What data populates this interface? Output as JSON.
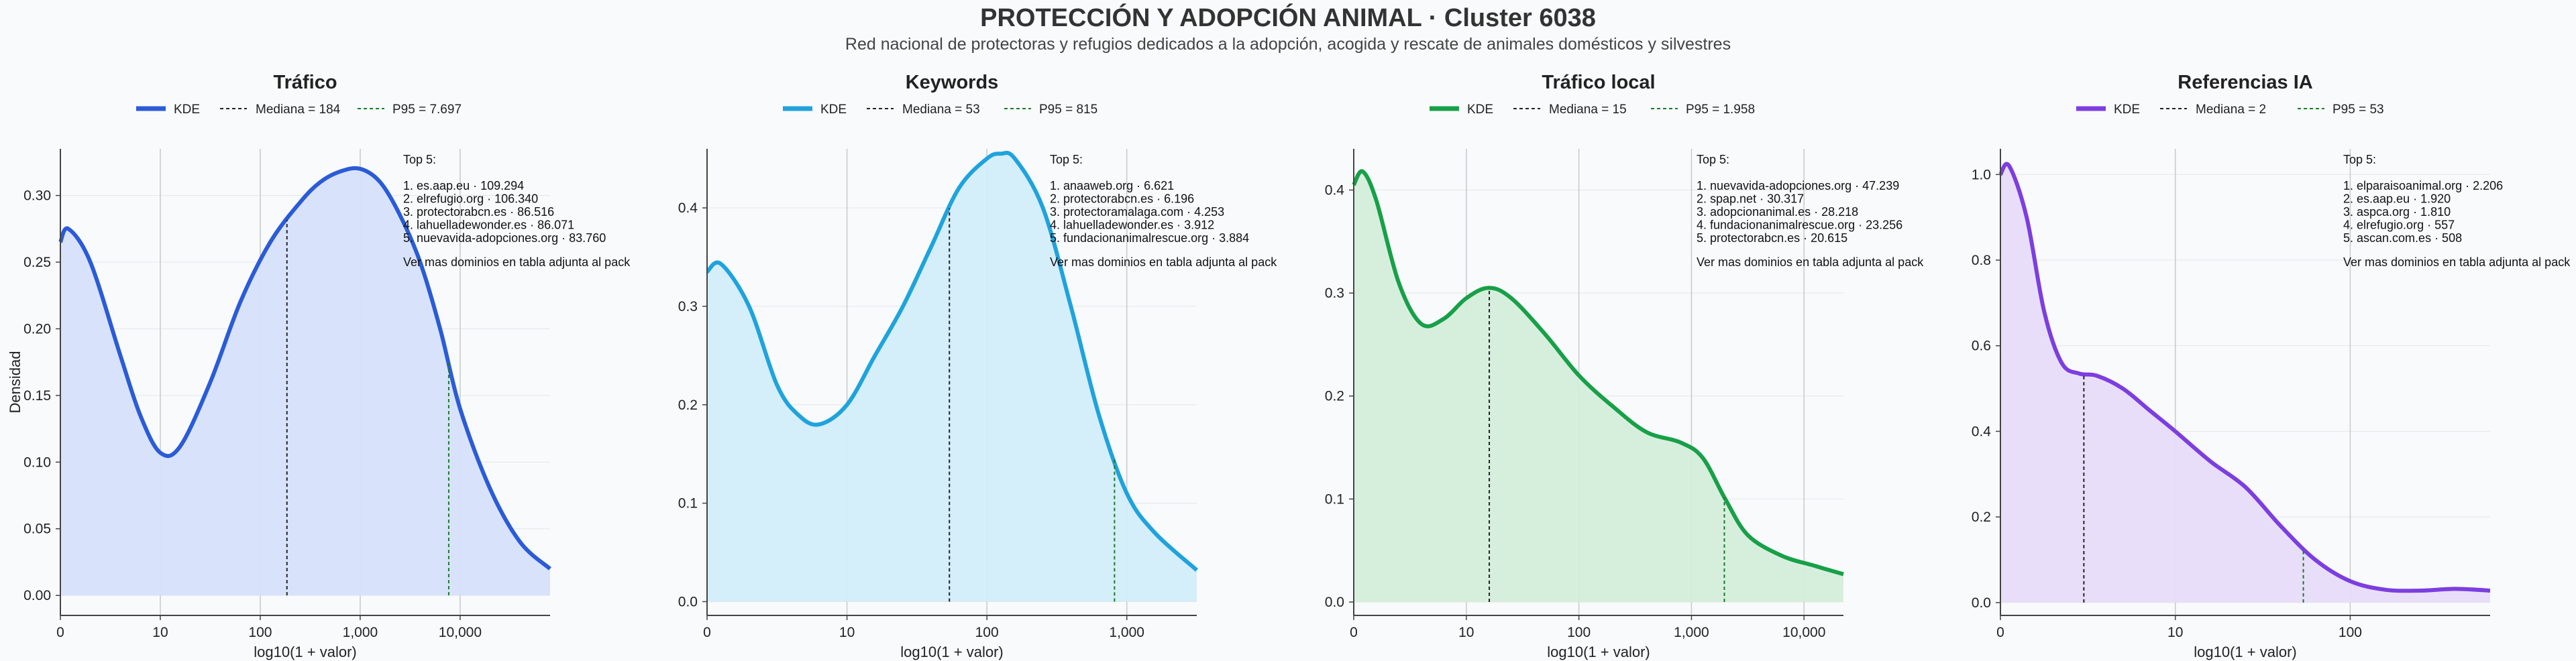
{
  "title": "PROTECCIÓN Y ADOPCIÓN ANIMAL · Cluster 6038",
  "subtitle": "Red nacional de protectoras y refugios dedicados a la adopción, acogida y rescate de animales domésticos y silvestres",
  "chart_data": [
    {
      "type": "area",
      "title": "Tráfico",
      "xlabel": "log10(1 + valor)",
      "ylabel": "Densidad",
      "color": "#2b5bd7",
      "fill": "#d6e2fb",
      "xlim": [
        0,
        4.9
      ],
      "ylim": [
        -0.015,
        0.335
      ],
      "xticks": [
        {
          "v": 0,
          "label": "0"
        },
        {
          "v": 1,
          "label": "10"
        },
        {
          "v": 2,
          "label": "100"
        },
        {
          "v": 3,
          "label": "1,000"
        },
        {
          "v": 4,
          "label": "10,000"
        }
      ],
      "yticks": [
        {
          "v": 0,
          "label": "0.00"
        },
        {
          "v": 0.05,
          "label": "0.05"
        },
        {
          "v": 0.1,
          "label": "0.10"
        },
        {
          "v": 0.15,
          "label": "0.15"
        },
        {
          "v": 0.2,
          "label": "0.20"
        },
        {
          "v": 0.25,
          "label": "0.25"
        },
        {
          "v": 0.3,
          "label": "0.30"
        }
      ],
      "legend": {
        "kde": "KDE",
        "median": "Mediana = 184",
        "p95": "P95 = 7.697"
      },
      "median_x": 2.267,
      "p95_x": 3.886,
      "kde": {
        "x": [
          0,
          0.08,
          0.3,
          0.6,
          0.8,
          1.0,
          1.2,
          1.5,
          1.8,
          2.1,
          2.4,
          2.6,
          2.8,
          3.0,
          3.2,
          3.4,
          3.6,
          3.8,
          4.0,
          4.3,
          4.6,
          4.9
        ],
        "y": [
          0.265,
          0.275,
          0.25,
          0.18,
          0.135,
          0.107,
          0.112,
          0.16,
          0.22,
          0.265,
          0.295,
          0.31,
          0.318,
          0.32,
          0.31,
          0.285,
          0.25,
          0.2,
          0.14,
          0.08,
          0.04,
          0.02
        ]
      },
      "top5": {
        "header": "Top 5:",
        "items": [
          "1. es.aap.eu · 109.294",
          "2. elrefugio.org · 106.340",
          "3. protectorabcn.es · 86.516",
          "4. lahuelladewonder.es · 86.071",
          "5. nuevavida-adopciones.org · 83.760"
        ],
        "footer": "Ver mas dominios en tabla adjunta al pack"
      }
    },
    {
      "type": "area",
      "title": "Keywords",
      "xlabel": "log10(1 + valor)",
      "ylabel": "",
      "color": "#1fa3dc",
      "fill": "#d2edfa",
      "xlim": [
        0,
        3.5
      ],
      "ylim": [
        -0.014,
        0.46
      ],
      "xticks": [
        {
          "v": 0,
          "label": "0"
        },
        {
          "v": 1,
          "label": "10"
        },
        {
          "v": 2,
          "label": "100"
        },
        {
          "v": 3,
          "label": "1,000"
        }
      ],
      "yticks": [
        {
          "v": 0,
          "label": "0.0"
        },
        {
          "v": 0.1,
          "label": "0.1"
        },
        {
          "v": 0.2,
          "label": "0.2"
        },
        {
          "v": 0.3,
          "label": "0.3"
        },
        {
          "v": 0.4,
          "label": "0.4"
        }
      ],
      "legend": {
        "kde": "KDE",
        "median": "Mediana = 53",
        "p95": "P95 = 815"
      },
      "median_x": 1.732,
      "p95_x": 2.912,
      "kde": {
        "x": [
          0,
          0.1,
          0.3,
          0.5,
          0.65,
          0.8,
          1.0,
          1.2,
          1.4,
          1.6,
          1.8,
          2.0,
          2.1,
          2.2,
          2.4,
          2.6,
          2.8,
          3.0,
          3.2,
          3.5
        ],
        "y": [
          0.335,
          0.343,
          0.3,
          0.22,
          0.19,
          0.18,
          0.2,
          0.25,
          0.3,
          0.36,
          0.42,
          0.45,
          0.455,
          0.45,
          0.4,
          0.3,
          0.19,
          0.11,
          0.07,
          0.032
        ]
      },
      "top5": {
        "header": "Top 5:",
        "items": [
          "1. anaaweb.org · 6.621",
          "2. protectorabcn.es · 6.196",
          "3. protectoramalaga.com · 4.253",
          "4. lahuelladewonder.es · 3.912",
          "5. fundacionanimalrescue.org · 3.884"
        ],
        "footer": "Ver mas dominios en tabla adjunta al pack"
      }
    },
    {
      "type": "area",
      "title": "Tráfico local",
      "xlabel": "log10(1 + valor)",
      "ylabel": "",
      "color": "#18a048",
      "fill": "#d4eedb",
      "xlim": [
        0,
        4.35
      ],
      "ylim": [
        -0.013,
        0.44
      ],
      "xticks": [
        {
          "v": 0,
          "label": "0"
        },
        {
          "v": 1,
          "label": "10"
        },
        {
          "v": 2,
          "label": "100"
        },
        {
          "v": 3,
          "label": "1,000"
        },
        {
          "v": 4,
          "label": "10,000"
        }
      ],
      "yticks": [
        {
          "v": 0,
          "label": "0.0"
        },
        {
          "v": 0.1,
          "label": "0.1"
        },
        {
          "v": 0.2,
          "label": "0.2"
        },
        {
          "v": 0.3,
          "label": "0.3"
        },
        {
          "v": 0.4,
          "label": "0.4"
        }
      ],
      "legend": {
        "kde": "KDE",
        "median": "Mediana = 15",
        "p95": "P95 = 1.958"
      },
      "median_x": 1.204,
      "p95_x": 3.292,
      "kde": {
        "x": [
          0,
          0.08,
          0.2,
          0.4,
          0.6,
          0.8,
          1.0,
          1.2,
          1.4,
          1.7,
          2.0,
          2.3,
          2.6,
          2.9,
          3.1,
          3.3,
          3.5,
          3.8,
          4.1,
          4.35
        ],
        "y": [
          0.405,
          0.418,
          0.39,
          0.31,
          0.27,
          0.275,
          0.295,
          0.305,
          0.295,
          0.26,
          0.22,
          0.19,
          0.165,
          0.155,
          0.14,
          0.1,
          0.065,
          0.045,
          0.035,
          0.027
        ]
      },
      "top5": {
        "header": "Top 5:",
        "items": [
          "1. nuevavida-adopciones.org · 47.239",
          "2. spap.net · 30.317",
          "3. adopcionanimal.es · 28.218",
          "4. fundacionanimalrescue.org · 23.256",
          "5. protectorabcn.es · 20.615"
        ],
        "footer": "Ver mas dominios en tabla adjunta al pack"
      }
    },
    {
      "type": "area",
      "title": "Referencias IA",
      "xlabel": "log10(1 + valor)",
      "ylabel": "",
      "color": "#7c3ee0",
      "fill": "#e8dcf9",
      "xlim": [
        0,
        2.8
      ],
      "ylim": [
        -0.03,
        1.06
      ],
      "xticks": [
        {
          "v": 0,
          "label": "0"
        },
        {
          "v": 1,
          "label": "10"
        },
        {
          "v": 2,
          "label": "100"
        }
      ],
      "yticks": [
        {
          "v": 0,
          "label": "0.0"
        },
        {
          "v": 0.2,
          "label": "0.2"
        },
        {
          "v": 0.4,
          "label": "0.4"
        },
        {
          "v": 0.6,
          "label": "0.6"
        },
        {
          "v": 0.8,
          "label": "0.8"
        },
        {
          "v": 1.0,
          "label": "1.0"
        }
      ],
      "legend": {
        "kde": "KDE",
        "median": "Mediana = 2",
        "p95": "P95 = 53"
      },
      "median_x": 0.477,
      "p95_x": 1.732,
      "kde": {
        "x": [
          0,
          0.05,
          0.15,
          0.25,
          0.35,
          0.45,
          0.55,
          0.7,
          0.85,
          1.0,
          1.2,
          1.4,
          1.6,
          1.8,
          2.0,
          2.2,
          2.4,
          2.6,
          2.8
        ],
        "y": [
          1.0,
          1.02,
          0.9,
          0.68,
          0.56,
          0.535,
          0.53,
          0.5,
          0.45,
          0.4,
          0.33,
          0.27,
          0.18,
          0.1,
          0.05,
          0.03,
          0.028,
          0.032,
          0.028
        ]
      },
      "top5": {
        "header": "Top 5:",
        "items": [
          "1. elparaisoanimal.org · 2.206",
          "2. es.aap.eu · 1.920",
          "3. aspca.org · 1.810",
          "4. elrefugio.org · 557",
          "5. ascan.com.es · 508"
        ],
        "footer": "Ver mas dominios en tabla adjunta al pack"
      }
    }
  ]
}
